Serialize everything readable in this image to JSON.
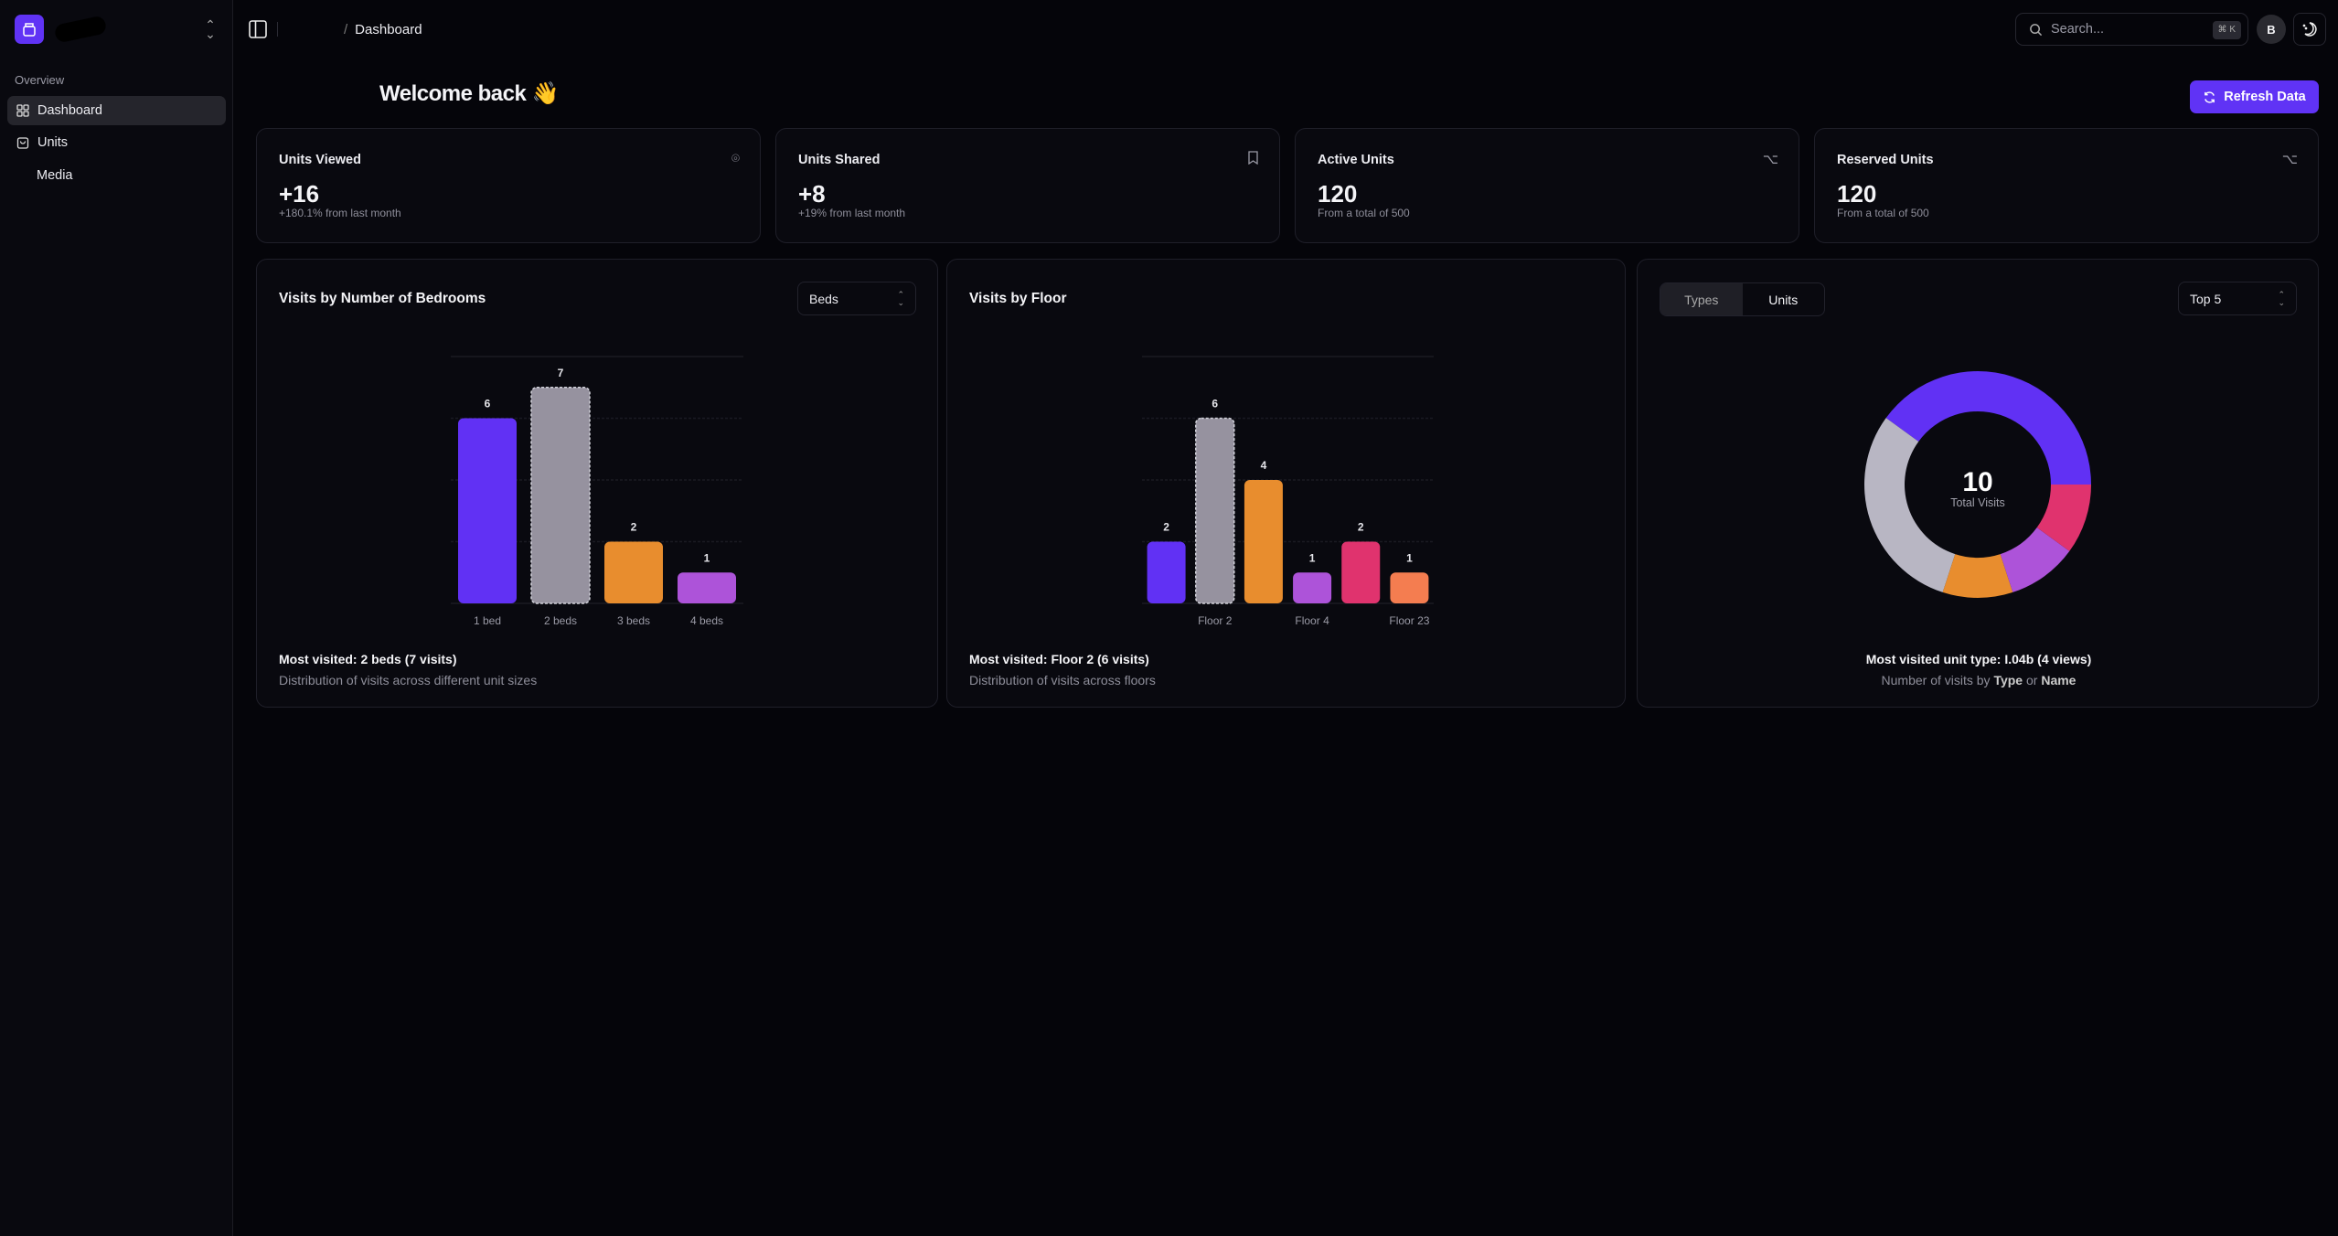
{
  "sidebar": {
    "section": "Overview",
    "items": [
      {
        "label": "Dashboard",
        "icon": "grid-icon"
      },
      {
        "label": "Units",
        "icon": "box-icon"
      },
      {
        "label": "Media"
      }
    ]
  },
  "header": {
    "breadcrumb": "Dashboard",
    "search_placeholder": "Search...",
    "shortcut": "⌘ K",
    "avatar": "B"
  },
  "main": {
    "welcome": "Welcome back 👋",
    "refresh_label": "Refresh Data",
    "stats": [
      {
        "title": "Units Viewed",
        "value": "+16",
        "sub": "+180.1% from last month",
        "icon": "eye-scan-icon"
      },
      {
        "title": "Units Shared",
        "value": "+8",
        "sub": "+19% from last month",
        "icon": "bookmark-icon"
      },
      {
        "title": "Active Units",
        "value": "120",
        "sub": "From a total of 500",
        "icon": "option-icon"
      },
      {
        "title": "Reserved Units",
        "value": "120",
        "sub": "From a total of 500",
        "icon": "option-icon"
      }
    ],
    "bedrooms": {
      "select": "Beds",
      "most": "Most visited: 2 beds (7 visits)",
      "desc": "Distribution of visits across different unit sizes"
    },
    "floors": {
      "most": "Most visited: Floor 2 (6 visits)",
      "desc": "Distribution of visits across floors"
    },
    "types": {
      "tabs": [
        "Types",
        "Units"
      ],
      "select": "Top 5",
      "center_value": "10",
      "center_label": "Total Visits",
      "most": "Most visited unit type: I.04b (4 views)",
      "desc_pre": "Number of visits by ",
      "desc_b1": "Type",
      "desc_mid": " or ",
      "desc_b2": "Name"
    }
  },
  "chart_data": [
    {
      "type": "bar",
      "title": "Visits by Number of Bedrooms",
      "categories": [
        "1 bed",
        "2 beds",
        "3 beds",
        "4 beds"
      ],
      "values": [
        6,
        7,
        2,
        1
      ],
      "colors": [
        "#6131f4",
        "#96929f",
        "#e88d2e",
        "#ad53d9"
      ],
      "highlight": 1,
      "ylim": [
        0,
        8
      ],
      "grid": true
    },
    {
      "type": "bar",
      "title": "Visits by Floor",
      "categories": [
        "",
        "Floor 2",
        "",
        "Floor 4",
        "",
        "Floor 23"
      ],
      "values": [
        2,
        6,
        4,
        1,
        2,
        1
      ],
      "colors": [
        "#6131f4",
        "#96929f",
        "#e88d2e",
        "#ad53d9",
        "#e0336e",
        "#f47d50"
      ],
      "highlight": 1,
      "ylim": [
        0,
        8
      ],
      "grid": true
    },
    {
      "type": "pie",
      "title": "Total Visits",
      "values": [
        1,
        1,
        1,
        3,
        4
      ],
      "colors": [
        "#e0336e",
        "#ad53d9",
        "#e88d2e",
        "#b8b6c3",
        "#6131f4"
      ],
      "total": 10
    }
  ]
}
